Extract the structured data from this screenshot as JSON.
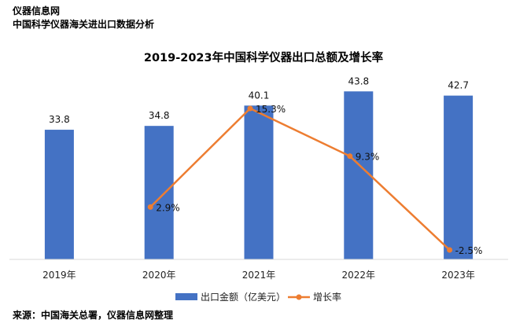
{
  "header": {
    "brand": "仪器信息网",
    "subtitle": "中国科学仪器海关进出口数据分析"
  },
  "footer": {
    "source": "来源：中国海关总署，仪器信息网整理"
  },
  "chart_data": {
    "type": "bar",
    "title": "2019-2023年中国科学仪器出口总额及增长率",
    "categories": [
      "2019年",
      "2020年",
      "2021年",
      "2022年",
      "2023年"
    ],
    "series": [
      {
        "name": "出口金额（亿美元）",
        "type": "bar",
        "values": [
          33.8,
          34.8,
          40.1,
          43.8,
          42.7
        ],
        "labels": [
          "33.8",
          "34.8",
          "40.1",
          "43.8",
          "42.7"
        ],
        "color": "#4472C4"
      },
      {
        "name": "增长率",
        "type": "line",
        "values": [
          null,
          2.9,
          15.3,
          9.3,
          -2.5
        ],
        "labels": [
          "",
          "2.9%",
          "15.3%",
          "9.3%",
          "-2.5%"
        ],
        "color": "#ED7D31"
      }
    ],
    "legend_position": "bottom",
    "grid": false
  }
}
